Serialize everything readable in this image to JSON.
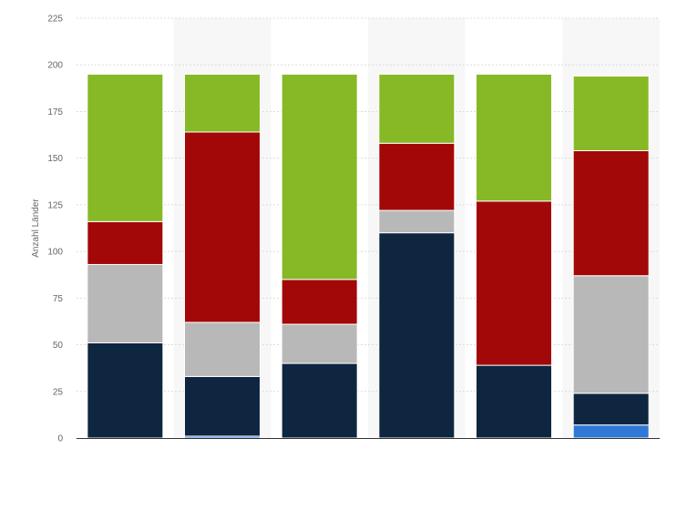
{
  "chart_data": {
    "type": "bar",
    "stacked": true,
    "ylabel": "Anzahl Länder",
    "xlabel": "",
    "ylim": [
      0,
      225
    ],
    "yticks": [
      0,
      25,
      50,
      75,
      100,
      125,
      150,
      175,
      200,
      225
    ],
    "grid": true,
    "categories": [
      "",
      "",
      "",
      "",
      "",
      ""
    ],
    "series": [
      {
        "color": "#2f78d6",
        "values": [
          0,
          1,
          0,
          0,
          0,
          7
        ]
      },
      {
        "color": "#0f2640",
        "values": [
          51,
          32,
          40,
          110,
          39,
          17
        ]
      },
      {
        "color": "#b8b8b8",
        "values": [
          42,
          29,
          21,
          12,
          0,
          63
        ]
      },
      {
        "color": "#a30808",
        "values": [
          23,
          102,
          24,
          36,
          88,
          67
        ]
      },
      {
        "color": "#86b925",
        "values": [
          79,
          31,
          110,
          37,
          68,
          40
        ]
      }
    ]
  }
}
